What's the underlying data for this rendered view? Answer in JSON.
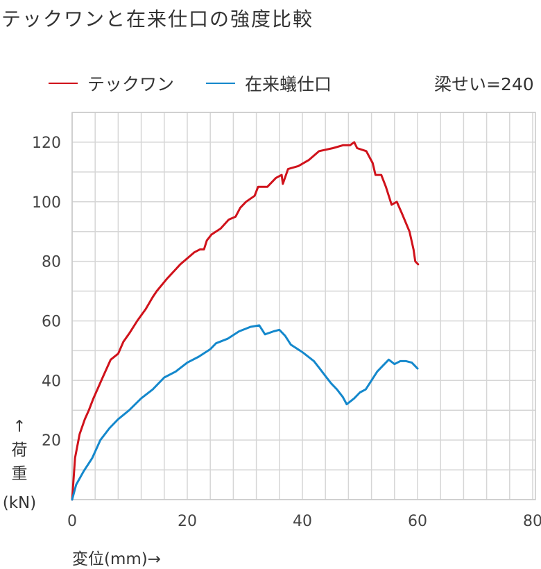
{
  "title": "テックワンと在来仕口の強度比較",
  "note": "梁せい=240",
  "chart_data": {
    "type": "line",
    "title": "テックワンと在来仕口の強度比較",
    "xlabel": "変位(mm)→",
    "ylabel_arrow": "↑",
    "ylabel_lines": [
      "荷",
      "重",
      "(kN)"
    ],
    "xlim": [
      0,
      80
    ],
    "ylim": [
      0,
      130
    ],
    "xticks": [
      0,
      20,
      40,
      60,
      80
    ],
    "yticks": [
      20,
      40,
      60,
      80,
      100,
      120
    ],
    "x_grid_step": 4,
    "y_grid_step": 10,
    "grid": true,
    "legend_position": "top",
    "series": [
      {
        "name": "テックワン",
        "color": "#d0121b",
        "points": [
          [
            0,
            0
          ],
          [
            0.5,
            14
          ],
          [
            1.3,
            22
          ],
          [
            2.2,
            27
          ],
          [
            2.9,
            30
          ],
          [
            3.7,
            34
          ],
          [
            5.3,
            41
          ],
          [
            6.7,
            47
          ],
          [
            8,
            49
          ],
          [
            8.9,
            53
          ],
          [
            10,
            56
          ],
          [
            11.3,
            60
          ],
          [
            12.8,
            64
          ],
          [
            14,
            68
          ],
          [
            14.7,
            70
          ],
          [
            16.4,
            74
          ],
          [
            18.8,
            79
          ],
          [
            21.2,
            83
          ],
          [
            22.2,
            84
          ],
          [
            22.9,
            84
          ],
          [
            23.4,
            87
          ],
          [
            24.2,
            89
          ],
          [
            25.8,
            91
          ],
          [
            27.2,
            94
          ],
          [
            28.4,
            95
          ],
          [
            29.2,
            98
          ],
          [
            30.2,
            100
          ],
          [
            31.7,
            102
          ],
          [
            32.3,
            105
          ],
          [
            33.9,
            105
          ],
          [
            35.4,
            108
          ],
          [
            36.4,
            109
          ],
          [
            36.6,
            106
          ],
          [
            37.5,
            111
          ],
          [
            39.3,
            112
          ],
          [
            41.1,
            114
          ],
          [
            42.9,
            117
          ],
          [
            45.3,
            118
          ],
          [
            47.1,
            119
          ],
          [
            48.3,
            119
          ],
          [
            49,
            120
          ],
          [
            49.5,
            118
          ],
          [
            51.1,
            117
          ],
          [
            52.2,
            113
          ],
          [
            52.7,
            109
          ],
          [
            53.7,
            109
          ],
          [
            54.5,
            105
          ],
          [
            55.5,
            99
          ],
          [
            56.4,
            100
          ],
          [
            57.3,
            96
          ],
          [
            58.6,
            90
          ],
          [
            59.3,
            84
          ],
          [
            59.6,
            80
          ],
          [
            60.1,
            79
          ]
        ]
      },
      {
        "name": "在来蟻仕口",
        "color": "#1488cc",
        "points": [
          [
            0,
            0
          ],
          [
            0.7,
            5
          ],
          [
            2,
            9.5
          ],
          [
            3.5,
            14
          ],
          [
            4.9,
            20
          ],
          [
            6.5,
            24
          ],
          [
            8,
            27
          ],
          [
            9.9,
            30
          ],
          [
            12,
            34
          ],
          [
            14,
            37
          ],
          [
            16,
            41
          ],
          [
            18,
            43
          ],
          [
            20,
            46
          ],
          [
            22,
            48
          ],
          [
            24,
            50.5
          ],
          [
            25,
            52.5
          ],
          [
            27,
            54
          ],
          [
            29,
            56.5
          ],
          [
            31,
            58
          ],
          [
            32.5,
            58.5
          ],
          [
            33.5,
            55.5
          ],
          [
            35,
            56.5
          ],
          [
            36,
            57
          ],
          [
            37,
            55
          ],
          [
            38,
            52
          ],
          [
            40,
            49.5
          ],
          [
            42,
            46.5
          ],
          [
            43,
            44
          ],
          [
            44,
            41.5
          ],
          [
            45,
            39
          ],
          [
            46,
            37
          ],
          [
            47,
            34.5
          ],
          [
            47.7,
            32
          ],
          [
            49,
            34
          ],
          [
            50,
            36
          ],
          [
            51,
            37
          ],
          [
            52,
            40
          ],
          [
            53,
            43
          ],
          [
            54,
            45
          ],
          [
            55,
            47
          ],
          [
            56,
            45.5
          ],
          [
            57,
            46.5
          ],
          [
            58,
            46.5
          ],
          [
            59,
            46
          ],
          [
            60,
            44
          ]
        ]
      }
    ]
  }
}
